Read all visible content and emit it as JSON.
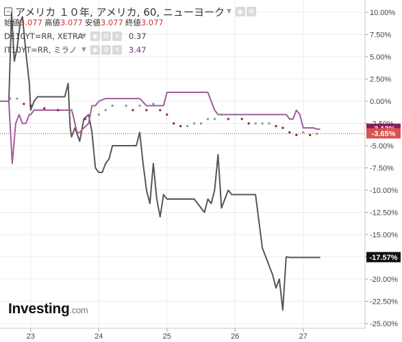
{
  "legend": {
    "title": "アメリカ １０年, アメリカ, 60, ニューヨーク",
    "ohlc": [
      {
        "label": "始値",
        "value": "3.077"
      },
      {
        "label": "高値",
        "value": "3.077"
      },
      {
        "label": "安値",
        "value": "3.077"
      },
      {
        "label": "終値",
        "value": "3.077"
      }
    ],
    "indicators": [
      {
        "name": "DE10YT=RR, XETRA",
        "value": "0.37",
        "color": "#333333"
      },
      {
        "name": "IT10YT=RR, ミラノ",
        "value": "3.47",
        "color": "#8a2a72"
      }
    ]
  },
  "logo": {
    "main": "Investing",
    "suffix": ".com"
  },
  "chart_data": {
    "type": "line",
    "x_ticks": [
      "23",
      "24",
      "25",
      "26",
      "27"
    ],
    "y_ticks": [
      "10.00%",
      "7.50%",
      "5.00%",
      "2.50%",
      "0.00%",
      "-2.50%",
      "-5.00%",
      "-7.50%",
      "-10.00%",
      "-12.50%",
      "-15.00%",
      "-17.50%",
      "-20.00%",
      "-22.50%",
      "-25.00%"
    ],
    "ylim": [
      -25,
      10
    ],
    "xlim": [
      22.55,
      27.7
    ],
    "grid": true,
    "series": [
      {
        "name": "DE10YT=RR, XETRA",
        "color": "#555555",
        "last_label": "-17.57%",
        "x": [
          22.55,
          22.68,
          22.72,
          22.76,
          22.8,
          22.85,
          22.88,
          22.93,
          22.98,
          23.0,
          23.05,
          23.1,
          23.2,
          23.3,
          23.4,
          23.5,
          23.55,
          23.58,
          23.6,
          23.65,
          23.72,
          23.78,
          23.85,
          23.9,
          23.95,
          24.0,
          24.05,
          24.1,
          24.15,
          24.2,
          24.3,
          24.4,
          24.5,
          24.55,
          24.6,
          24.65,
          24.7,
          24.75,
          24.8,
          24.85,
          24.9,
          24.95,
          25.0,
          25.05,
          25.1,
          25.15,
          25.2,
          25.3,
          25.4,
          25.5,
          25.55,
          25.6,
          25.65,
          25.7,
          25.75,
          25.8,
          25.85,
          25.9,
          25.95,
          26.0,
          26.05,
          26.1,
          26.2,
          26.3,
          26.4,
          26.5,
          26.55,
          26.6,
          26.65,
          26.7,
          26.75,
          26.8,
          26.85,
          26.9,
          26.95,
          27.0,
          27.1,
          27.2,
          27.25
        ],
        "y": [
          0.0,
          0.0,
          10.0,
          4.5,
          6.0,
          9.0,
          9.5,
          5.5,
          2.0,
          -1.0,
          0.0,
          0.5,
          0.5,
          0.5,
          0.5,
          0.5,
          2.0,
          -3.0,
          -4.0,
          -3.0,
          -4.5,
          -2.0,
          -1.5,
          -3.5,
          -7.5,
          -8.0,
          -8.0,
          -7.0,
          -6.5,
          -5.0,
          -5.0,
          -5.0,
          -5.0,
          -5.0,
          -3.5,
          -7.0,
          -10.0,
          -11.5,
          -7.0,
          -11.0,
          -13.0,
          -10.5,
          -11.0,
          -11.0,
          -11.0,
          -11.0,
          -11.0,
          -11.0,
          -11.0,
          -12.0,
          -12.5,
          -11.0,
          -11.5,
          -10.0,
          -6.0,
          -12.0,
          -11.0,
          -10.0,
          -10.5,
          -10.5,
          -10.5,
          -10.5,
          -10.5,
          -10.5,
          -16.5,
          -18.5,
          -19.5,
          -21.0,
          -20.0,
          -23.5,
          -17.5,
          -17.57,
          -17.57,
          -17.57,
          -17.57,
          -17.57,
          -17.57,
          -17.57,
          -17.57
        ]
      },
      {
        "name": "IT10YT=RR, ミラノ",
        "color": "#a05b9b",
        "last_label": "-3.13%",
        "x": [
          22.55,
          22.68,
          22.73,
          22.78,
          22.83,
          22.88,
          22.93,
          22.98,
          23.0,
          23.05,
          23.2,
          23.4,
          23.6,
          23.62,
          23.68,
          23.72,
          23.78,
          23.85,
          23.9,
          23.95,
          24.0,
          24.1,
          24.2,
          24.3,
          24.4,
          24.5,
          24.55,
          24.6,
          24.7,
          24.8,
          24.85,
          24.9,
          24.95,
          25.0,
          25.2,
          25.4,
          25.6,
          25.65,
          25.7,
          25.75,
          25.8,
          25.85,
          25.9,
          26.0,
          26.2,
          26.4,
          26.6,
          26.65,
          26.7,
          26.75,
          26.8,
          26.85,
          26.9,
          26.95,
          27.0,
          27.05,
          27.1,
          27.15,
          27.2,
          27.25
        ],
        "y": [
          0.0,
          0.0,
          -7.0,
          -2.5,
          -1.5,
          -2.5,
          -2.5,
          -1.5,
          -1.5,
          -1.0,
          -1.0,
          -1.0,
          -1.0,
          -1.5,
          -3.5,
          -3.5,
          -3.0,
          -2.5,
          -0.5,
          -0.5,
          0.0,
          0.3,
          0.3,
          0.3,
          0.3,
          0.3,
          0.3,
          0.3,
          -0.5,
          -0.5,
          -0.5,
          -0.5,
          -0.5,
          1.0,
          1.0,
          1.0,
          1.0,
          0.0,
          -1.0,
          -1.5,
          -1.5,
          -1.5,
          -1.5,
          -1.5,
          -1.5,
          -1.5,
          -1.5,
          -1.5,
          -1.5,
          -1.5,
          -2.0,
          -2.0,
          -1.0,
          -1.5,
          -3.0,
          -3.0,
          -3.0,
          -3.0,
          -3.13,
          -3.13
        ]
      },
      {
        "name": "アメリカ １０年, アメリカ, 60, ニューヨーク",
        "color": "#c0392b",
        "last_label": "-3.65%",
        "x": [
          22.55,
          22.7,
          22.8,
          22.9,
          23.0,
          23.2,
          23.4,
          23.6,
          23.8,
          24.0,
          24.1,
          24.2,
          24.4,
          24.5,
          24.6,
          24.7,
          24.8,
          24.9,
          25.0,
          25.1,
          25.2,
          25.3,
          25.4,
          25.5,
          25.6,
          25.7,
          25.8,
          25.9,
          26.0,
          26.1,
          26.2,
          26.3,
          26.4,
          26.5,
          26.6,
          26.7,
          26.8,
          26.9,
          27.0,
          27.1,
          27.2
        ],
        "y": [
          0.0,
          0.3,
          0.3,
          -0.3,
          -0.5,
          -0.8,
          -1.0,
          -1.0,
          -2.0,
          -1.5,
          -1.0,
          -0.5,
          -0.5,
          -1.0,
          -0.5,
          -1.0,
          -0.3,
          -1.0,
          -1.5,
          -2.5,
          -2.8,
          -2.8,
          -2.5,
          -2.5,
          -2.0,
          -2.0,
          -1.5,
          -2.0,
          -1.5,
          -2.0,
          -2.5,
          -2.5,
          -2.5,
          -2.5,
          -2.8,
          -3.0,
          -3.5,
          -3.8,
          -3.5,
          -3.8,
          -3.65
        ]
      }
    ],
    "reference_line": {
      "value": -3.65,
      "color": "#c0392b"
    }
  }
}
